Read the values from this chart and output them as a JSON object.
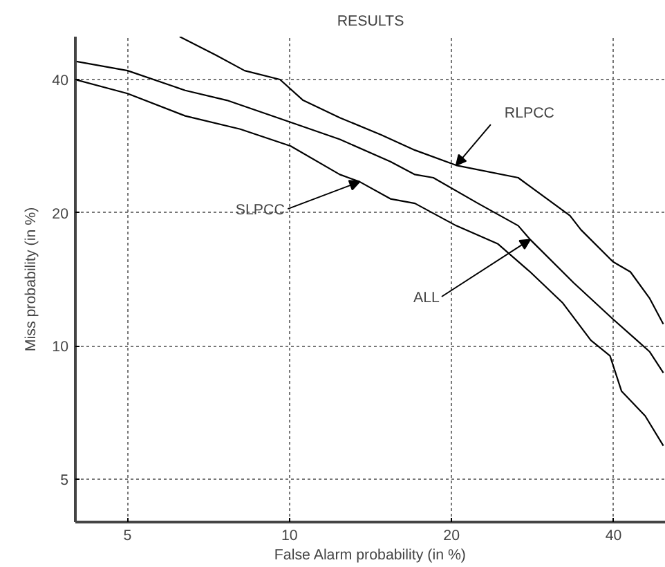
{
  "chart_data": {
    "type": "line",
    "title": "RESULTS",
    "xlabel": "False Alarm probability (in %)",
    "ylabel": "Miss probability (in %)",
    "xlim": [
      4,
      50
    ],
    "ylim": [
      4,
      50
    ],
    "xticks": [
      5,
      10,
      20,
      40
    ],
    "yticks": [
      5,
      10,
      20,
      40
    ],
    "grid": true,
    "log": "xy",
    "series": [
      {
        "color": "#000000",
        "x": [
          4.0,
          5,
          6.4,
          8.1,
          10.05,
          12.4,
          13.5,
          15.4,
          17.1,
          20.4,
          24.4,
          28.0,
          32.2,
          36.3,
          39.4,
          41.4,
          45.8,
          49.5
        ],
        "values": [
          40,
          37.2,
          33.1,
          30.9,
          28.3,
          24.4,
          23.5,
          21.5,
          21.0,
          18.7,
          17.0,
          14.7,
          12.5,
          10.3,
          9.5,
          7.9,
          6.95,
          5.95
        ]
      },
      {
        "color": "#000000",
        "x": [
          4.0,
          5,
          6.4,
          7.65,
          9.85,
          12.4,
          15.4,
          17.1,
          18.5,
          22.4,
          26.6,
          28.0,
          33.7,
          39.9,
          44.2,
          46.7,
          49.5
        ],
        "values": [
          44.0,
          41.9,
          37.8,
          35.9,
          32.3,
          29.3,
          26.1,
          24.4,
          24.0,
          21.0,
          18.7,
          17.4,
          13.9,
          11.5,
          10.3,
          9.7,
          8.7
        ]
      },
      {
        "color": "#000000",
        "x": [
          6.25,
          7.3,
          8.25,
          9.6,
          10.6,
          12.4,
          14.8,
          17.1,
          20.4,
          26.6,
          33.2,
          34.8,
          39.9,
          43.0,
          46.7,
          49.5
        ],
        "values": [
          50,
          45.4,
          41.9,
          40,
          35.9,
          32.8,
          30.0,
          27.7,
          25.6,
          24.0,
          19.7,
          18.3,
          15.5,
          14.7,
          12.8,
          11.2
        ]
      }
    ],
    "annotations": [
      {
        "text": "RLPCC",
        "x": 20.4,
        "y": 25.6
      },
      {
        "text": "SLPCC",
        "x": 13.5,
        "y": 23.5
      },
      {
        "text": "ALL",
        "x": 28.0,
        "y": 17.4
      }
    ]
  }
}
